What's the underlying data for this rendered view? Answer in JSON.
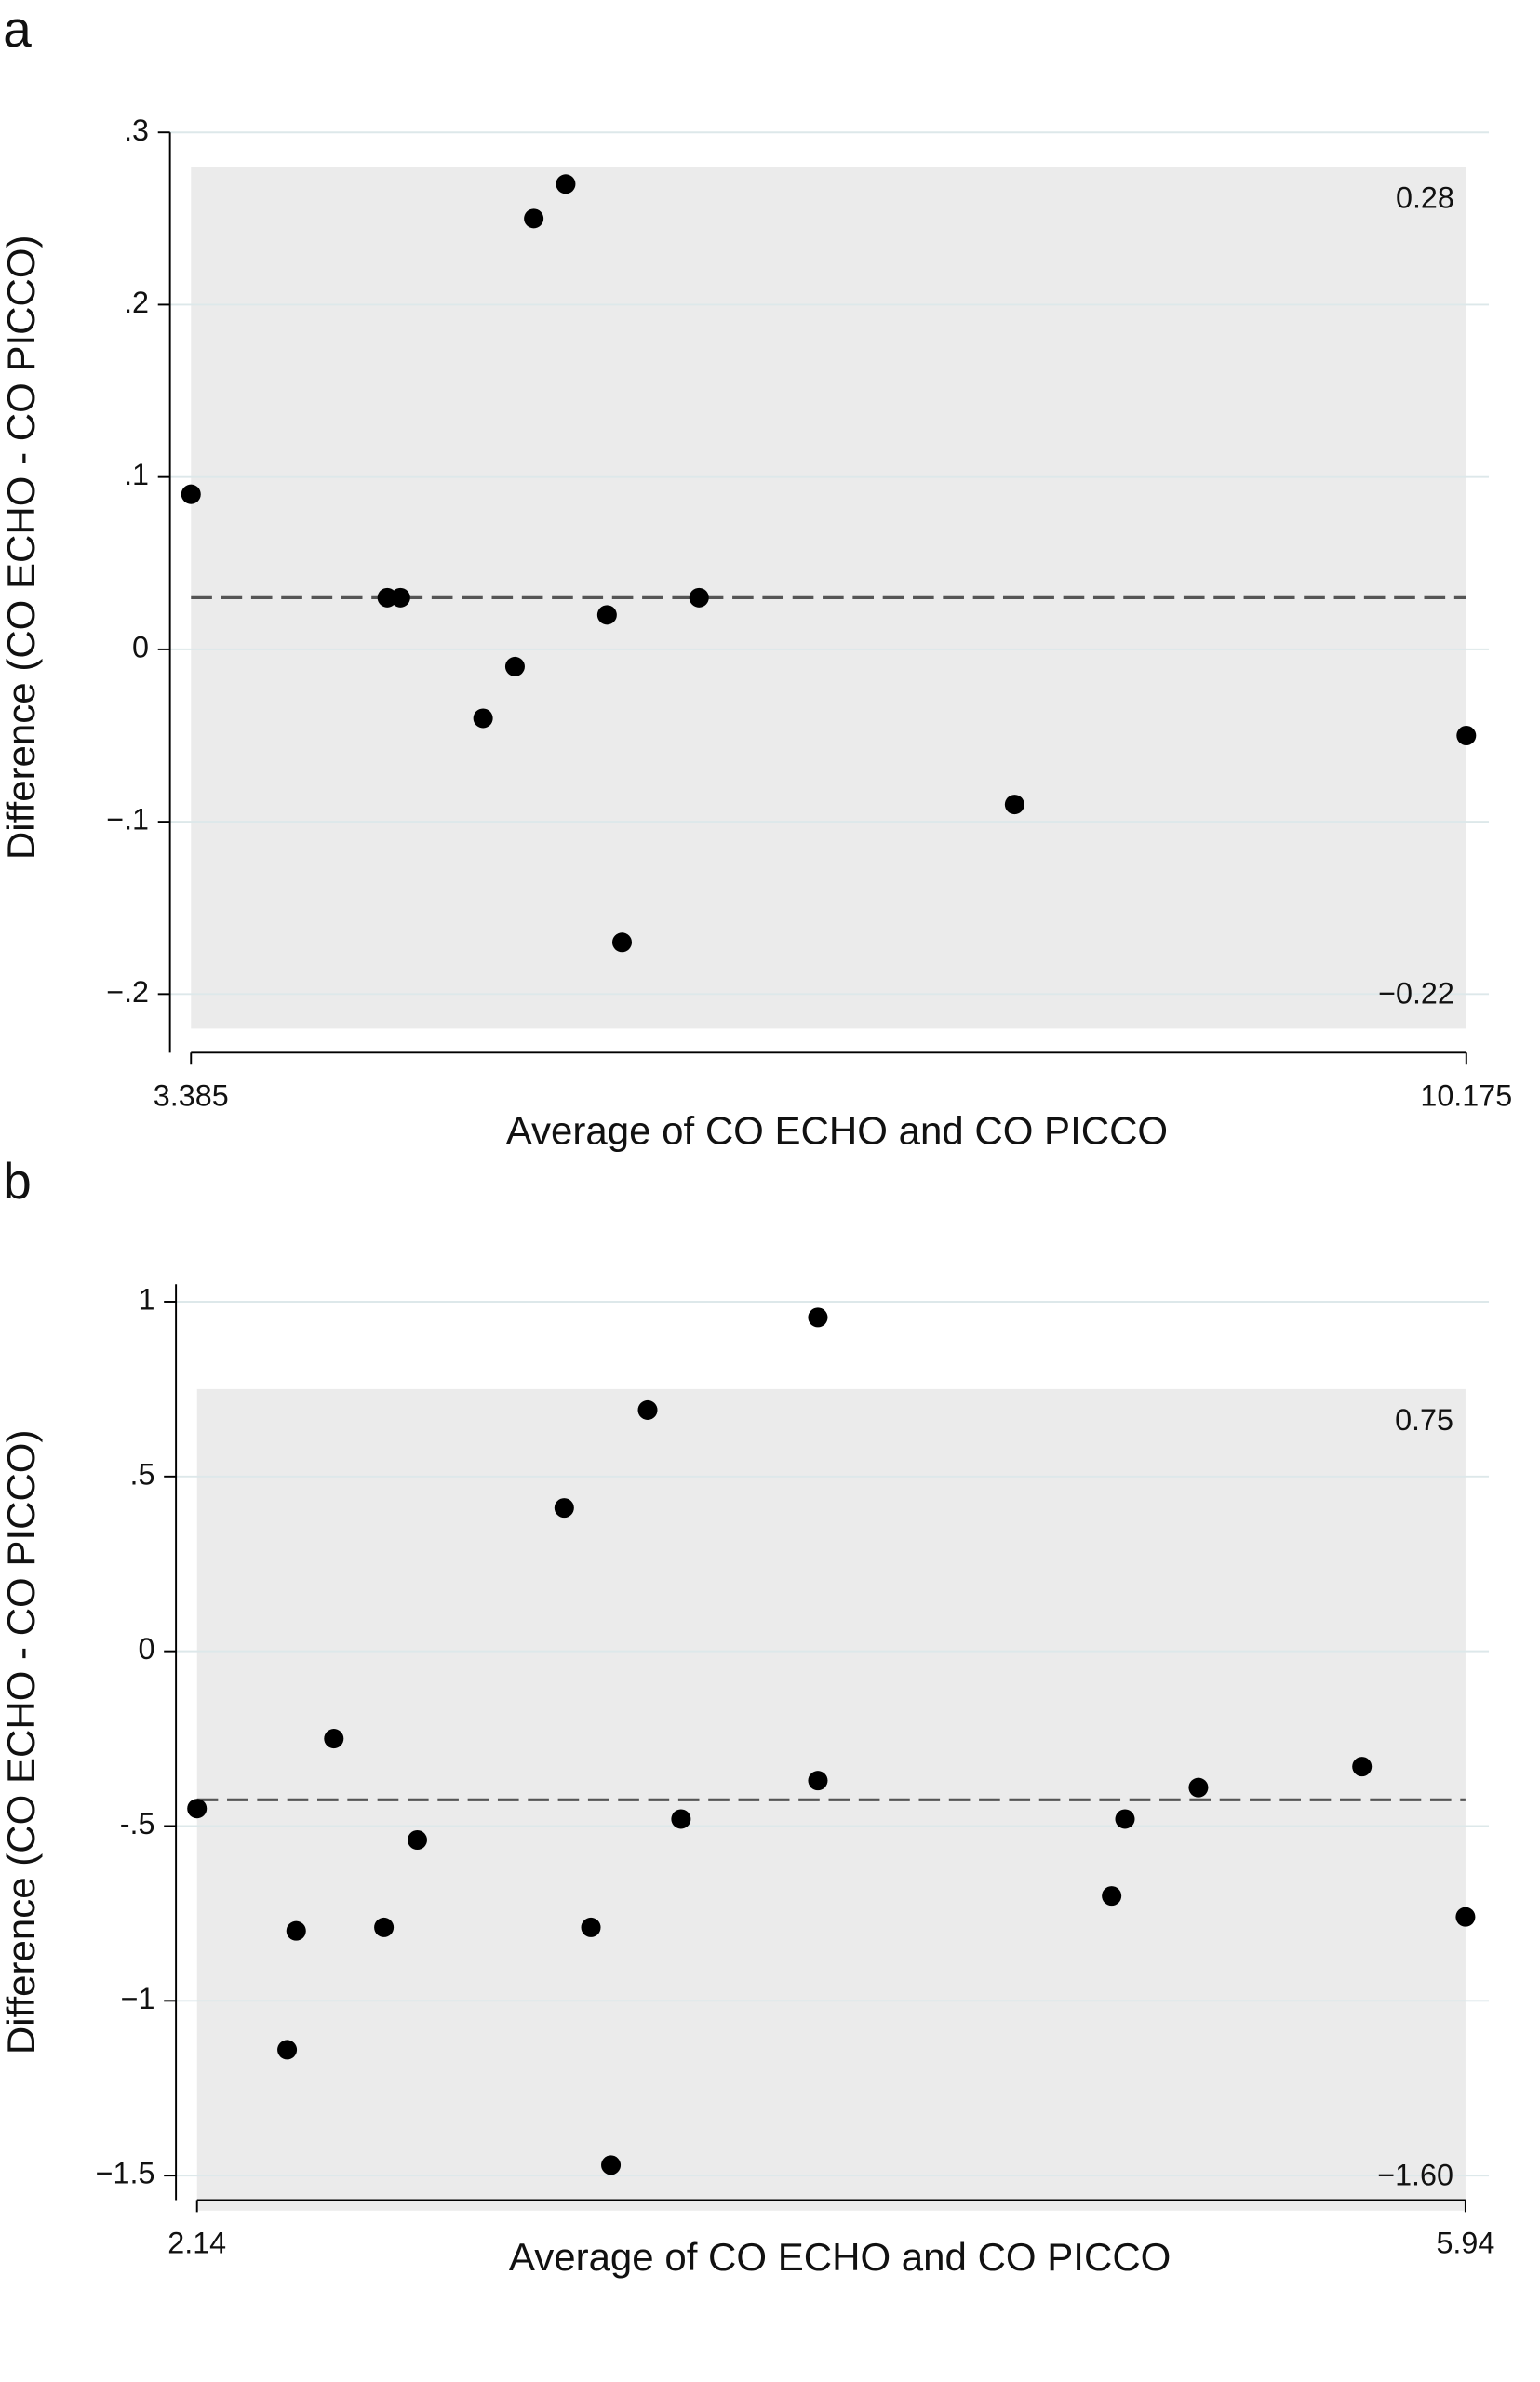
{
  "chart_data": [
    {
      "type": "scatter",
      "panel": "a",
      "x_label": "Average of CO ECHO and CO PICCO",
      "y_label": "Difference (CO ECHO - CO PICCO)",
      "x": [
        3.385,
        4.43,
        4.5,
        4.94,
        5.11,
        5.21,
        5.38,
        5.6,
        5.68,
        6.09,
        7.77,
        10.175
      ],
      "values": [
        0.09,
        0.03,
        0.03,
        -0.04,
        -0.01,
        0.25,
        0.27,
        0.02,
        -0.17,
        0.03,
        -0.09,
        -0.05
      ],
      "color": "#000000",
      "mean": 0.03,
      "upper_loa": 0.28,
      "lower_loa": {
        "value": -0.22,
        "label": "−0.22"
      },
      "band_color": "#ebebeb",
      "xlim": [
        3.273,
        10.295
      ],
      "xticks": [
        3.385,
        10.175
      ],
      "ylim": [
        -0.234,
        0.3
      ],
      "yticks": [
        {
          "value": 0.3,
          "label": ".3"
        },
        {
          "value": 0.2,
          "label": ".2"
        },
        {
          "value": 0.1,
          "label": ".1"
        },
        0,
        {
          "value": -0.1,
          "label": "−.1"
        },
        {
          "value": -0.2,
          "label": "−.2"
        }
      ],
      "grid": true
    },
    {
      "type": "scatter",
      "panel": "b",
      "x_label": "Average of CO ECHO and CO PICCO",
      "y_label": "Difference (CO ECHO - CO PICCO)",
      "x": [
        2.14,
        2.437,
        2.41,
        2.55,
        2.7,
        2.8,
        3.24,
        3.32,
        3.38,
        3.49,
        3.59,
        4.0,
        4.0,
        4.88,
        4.92,
        5.14,
        5.63,
        5.94
      ],
      "values": [
        -0.45,
        -0.8,
        -1.14,
        -0.25,
        -0.79,
        -0.54,
        0.41,
        -0.79,
        -1.47,
        0.69,
        -0.48,
        0.955,
        -0.37,
        -0.7,
        -0.48,
        -0.39,
        -0.33,
        -0.76
      ],
      "color": "#000000",
      "mean": -0.425,
      "upper_loa": 0.75,
      "lower_loa": {
        "value": -1.6,
        "label": "−1.60"
      },
      "band_color": "#ebebeb",
      "xlim": [
        2.077,
        6.01
      ],
      "xticks": [
        2.14,
        5.94
      ],
      "ylim": [
        -1.57,
        1.05
      ],
      "yticks": [
        1,
        {
          "value": 0.5,
          "label": ".5"
        },
        0,
        {
          "value": -0.5,
          "label": "-.5"
        },
        {
          "value": -1,
          "label": "−1"
        },
        {
          "value": -1.5,
          "label": "−1.5"
        }
      ],
      "grid": true
    }
  ]
}
